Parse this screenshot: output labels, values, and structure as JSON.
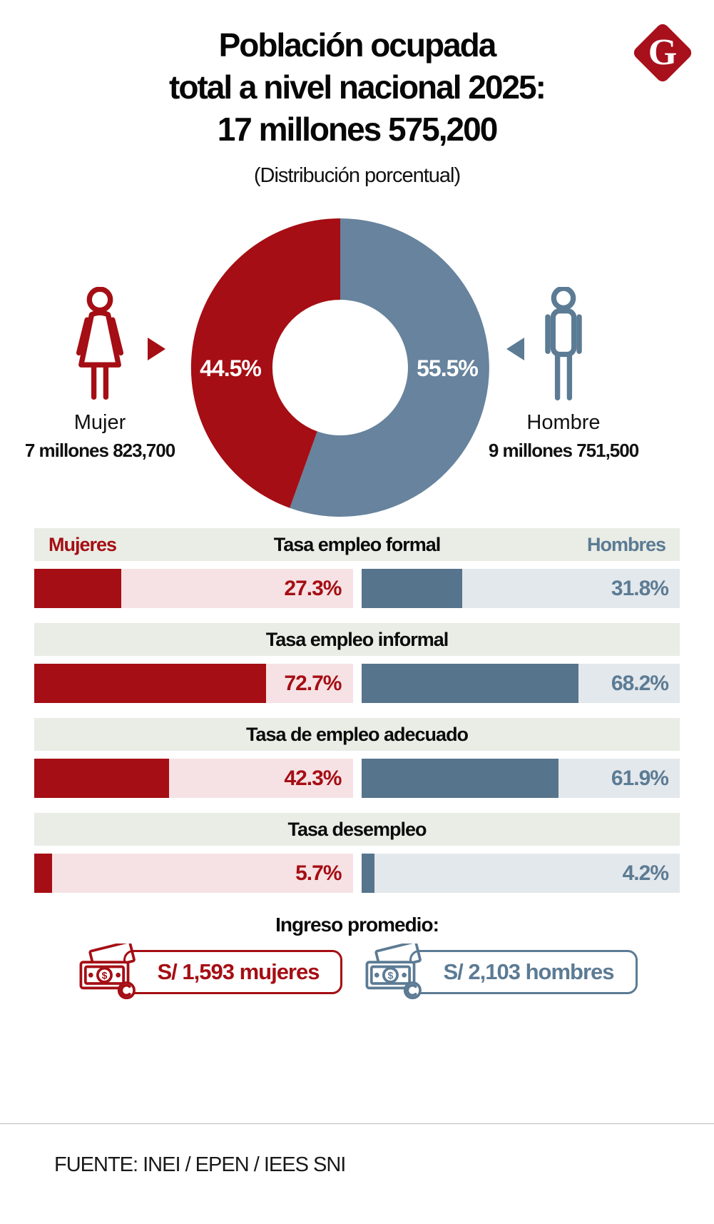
{
  "header": {
    "title_line1": "Población ocupada",
    "title_line2": "total a nivel nacional 2025:",
    "title_line3": "17 millones 575,200",
    "subtitle": "(Distribución porcentual)",
    "logo_letter": "G"
  },
  "donut": {
    "female": {
      "pct_label": "44.5%",
      "name": "Mujer",
      "total": "7 millones 823,700"
    },
    "male": {
      "pct_label": "55.5%",
      "name": "Hombre",
      "total": "9 millones 751,500"
    }
  },
  "legend": {
    "female": "Mujeres",
    "male": "Hombres"
  },
  "sections": [
    {
      "title": "Tasa empleo formal",
      "female_value": 27.3,
      "female_label": "27.3%",
      "male_value": 31.8,
      "male_label": "31.8%"
    },
    {
      "title": "Tasa empleo informal",
      "female_value": 72.7,
      "female_label": "72.7%",
      "male_value": 68.2,
      "male_label": "68.2%"
    },
    {
      "title": "Tasa de empleo adecuado",
      "female_value": 42.3,
      "female_label": "42.3%",
      "male_value": 61.9,
      "male_label": "61.9%"
    },
    {
      "title": "Tasa desempleo",
      "female_value": 5.7,
      "female_label": "5.7%",
      "male_value": 4.2,
      "male_label": "4.2%"
    }
  ],
  "income": {
    "heading": "Ingreso promedio:",
    "female_label": "S/ 1,593 mujeres",
    "male_label": "S/ 2,103 hombres"
  },
  "footer": {
    "source": "FUENTE: INEI / EPEN / IEES SNI"
  },
  "colors": {
    "female_red": "#A50E14",
    "female_track_pink": "#F6E2E4",
    "male_blue_donut": "#67839D",
    "male_blue_fill": "#57748D",
    "male_blue_text": "#5C7B94",
    "male_track_blue": "#E3E8EC",
    "section_band_green": "#E9EDE5",
    "logo_red": "#A8101C"
  },
  "chart_data": [
    {
      "type": "pie",
      "donut": true,
      "title": "Población ocupada total a nivel nacional 2025: 17 millones 575,200",
      "subtitle": "(Distribución porcentual)",
      "labels": [
        "Mujer",
        "Hombre"
      ],
      "values": [
        44.5,
        55.5
      ],
      "absolute_values": [
        "7 millones 823,700",
        "9 millones 751,500"
      ],
      "colors": [
        "#A50E14",
        "#67839D"
      ],
      "start_angle_deg": 0,
      "direction": "clockwise_from_top_male_first"
    },
    {
      "type": "bar",
      "orientation": "horizontal",
      "categories": [
        "Tasa empleo formal",
        "Tasa empleo informal",
        "Tasa de empleo adecuado",
        "Tasa desempleo"
      ],
      "series": [
        {
          "name": "Mujeres",
          "values": [
            27.3,
            72.7,
            42.3,
            5.7
          ],
          "color": "#A50E14"
        },
        {
          "name": "Hombres",
          "values": [
            31.8,
            68.2,
            61.9,
            4.2
          ],
          "color": "#57748D"
        }
      ],
      "unit": "%",
      "xlim": [
        0,
        100
      ],
      "grid": false,
      "legend_position": "first-band-left-right"
    },
    {
      "type": "table",
      "title": "Ingreso promedio:",
      "rows": [
        [
          "Mujeres",
          "S/ 1,593"
        ],
        [
          "Hombres",
          "S/ 2,103"
        ]
      ]
    }
  ]
}
